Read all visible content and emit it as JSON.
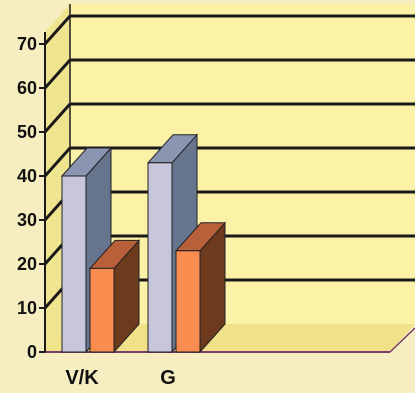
{
  "chart_data": {
    "type": "bar",
    "categories": [
      "V/K",
      "G"
    ],
    "series": [
      {
        "values": [
          40,
          43
        ],
        "front_color": "#c7c6dc",
        "side_color": "#67748e",
        "top_color": "#8a95b2"
      },
      {
        "values": [
          19,
          23
        ],
        "front_color": "#f98c4f",
        "side_color": "#6e3a1e",
        "top_color": "#b8603a"
      }
    ],
    "y_ticks": [
      "0",
      "10",
      "20",
      "30",
      "40",
      "50",
      "60",
      "70"
    ],
    "ylim": [
      0,
      70
    ],
    "grid": true,
    "three_d": true,
    "colors": {
      "page_background": "#f6eec0",
      "back_wall": "#fbf2a8",
      "side_wall": "#efe48f",
      "floor": "#f1e28a",
      "gridline": "#1a1a1a",
      "axis": "#1a1a1a",
      "floor_border": "#7a3c6a"
    }
  }
}
